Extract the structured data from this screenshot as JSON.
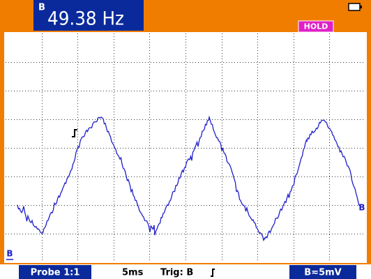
{
  "header": {
    "channel": "B",
    "reading": "49.38 Hz",
    "status": "HOLD"
  },
  "screen": {
    "trace_marker": "B",
    "ground_marker": "B"
  },
  "footer": {
    "probe": "Probe 1:1",
    "timebase": "5ms",
    "trigger": "Trig: B",
    "range": "B≂5mV"
  }
}
